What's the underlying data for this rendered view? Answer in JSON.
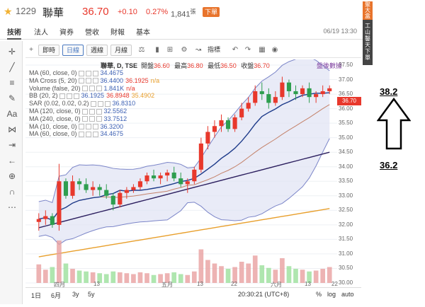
{
  "header": {
    "code": "1229",
    "name": "聯華",
    "price": "36.70",
    "change": "+0.10",
    "pct": "0.27%",
    "volume": "1,841",
    "volume_unit": "張",
    "order_button": "下單"
  },
  "tabs": [
    "技術",
    "法人",
    "資券",
    "營收",
    "財報",
    "基本"
  ],
  "datetime": "06/19 13:30",
  "toolbar": {
    "b1": "即時",
    "b2": "日線",
    "b3": "週線",
    "b4": "月線",
    "b5": "指標"
  },
  "ohlc": {
    "title": "聯華, D, TSE",
    "open_label": "開盤",
    "open": "36.60",
    "high_label": "最高",
    "high": "36.80",
    "low_label": "最低",
    "low": "36.50",
    "close_label": "收盤",
    "close": "36.70"
  },
  "purple_text": "盤後數據",
  "legend": [
    {
      "label": "MA (60, close, 0)",
      "v": "34.4675"
    },
    {
      "label": "MA Cross (5, 20)",
      "v": "36.4400",
      "v2": "36.1925",
      "v3": "n/a"
    },
    {
      "label": "Volume (false, 20)",
      "v": "1.841K",
      "v2": "n/a"
    },
    {
      "label": "BB (20, 2)",
      "v": "36.1925",
      "v2": "36.8948",
      "v3": "35.4902"
    },
    {
      "label": "SAR (0.02, 0.02, 0.2)",
      "v": "36.8310"
    },
    {
      "label": "MA (120, close, 0)",
      "v": "32.5562"
    },
    {
      "label": "MA (240, close, 0)",
      "v": "33.7512"
    },
    {
      "label": "MA (10, close, 0)",
      "v": "36.3200"
    },
    {
      "label": "MA (60, close, 0)",
      "v": "34.4675"
    }
  ],
  "price_labels": [
    "37.50",
    "37.00",
    "36.70",
    "36.50",
    "36.00",
    "35.50",
    "35.00",
    "34.50",
    "34.00",
    "33.50",
    "33.00",
    "32.50",
    "32.00",
    "31.50",
    "31.00",
    "30.50",
    "30.00"
  ],
  "x_labels": [
    "四月",
    "13",
    "五月",
    "13",
    "22",
    "六月",
    "13",
    "22"
  ],
  "bottom": {
    "r1": "1日",
    "r2": "6月",
    "r3": "3y",
    "r4": "5y",
    "time": "20:30:21 (UTC+8)",
    "pct": "%",
    "log": "log",
    "auto": "auto"
  },
  "side": {
    "s1": "聚大盒",
    "s2": "工山鑿天下單"
  },
  "annotation": {
    "top": "38.2",
    "bottom": "36.2"
  },
  "colors": {
    "up": "#e8382c",
    "down": "#2e9e4f",
    "accent": "#e8742c"
  },
  "chart_data": {
    "type": "candlestick",
    "title": "聯華, D, TSE",
    "ylim": [
      30.0,
      37.5
    ],
    "candles": [
      [
        32.1,
        32.4,
        31.8,
        32.2
      ],
      [
        32.2,
        32.5,
        32.0,
        32.3
      ],
      [
        32.3,
        32.4,
        31.9,
        32.0
      ],
      [
        32.0,
        34.1,
        31.8,
        33.5
      ],
      [
        33.5,
        33.6,
        32.9,
        33.0
      ],
      [
        33.0,
        33.7,
        32.9,
        33.5
      ],
      [
        33.5,
        33.6,
        33.2,
        33.4
      ],
      [
        33.4,
        33.6,
        33.1,
        33.2
      ],
      [
        33.2,
        33.5,
        33.0,
        33.3
      ],
      [
        33.3,
        33.4,
        33.0,
        33.2
      ],
      [
        33.2,
        33.4,
        32.9,
        33.0
      ],
      [
        33.0,
        33.1,
        32.5,
        32.7
      ],
      [
        32.7,
        33.2,
        32.6,
        33.1
      ],
      [
        33.1,
        33.3,
        32.9,
        33.2
      ],
      [
        33.2,
        33.4,
        33.1,
        33.3
      ],
      [
        33.3,
        33.6,
        33.2,
        33.5
      ],
      [
        33.5,
        33.8,
        33.4,
        33.7
      ],
      [
        33.7,
        33.9,
        33.5,
        33.6
      ],
      [
        33.6,
        33.8,
        33.4,
        33.7
      ],
      [
        33.7,
        33.9,
        33.5,
        33.8
      ],
      [
        33.8,
        34.0,
        33.5,
        33.6
      ],
      [
        33.6,
        33.8,
        33.3,
        33.4
      ],
      [
        33.4,
        33.6,
        33.1,
        33.5
      ],
      [
        33.5,
        34.0,
        33.4,
        33.9
      ],
      [
        33.9,
        35.0,
        33.8,
        34.8
      ],
      [
        34.8,
        35.4,
        34.6,
        35.2
      ],
      [
        35.2,
        35.6,
        35.0,
        35.4
      ],
      [
        35.4,
        35.8,
        35.2,
        35.6
      ],
      [
        35.6,
        35.7,
        35.2,
        35.3
      ],
      [
        35.3,
        35.8,
        35.2,
        35.7
      ],
      [
        35.7,
        36.2,
        35.6,
        36.0
      ],
      [
        36.0,
        36.4,
        35.9,
        36.2
      ],
      [
        36.2,
        36.8,
        36.1,
        36.6
      ],
      [
        36.6,
        36.9,
        36.3,
        36.5
      ],
      [
        36.5,
        36.7,
        36.0,
        36.2
      ],
      [
        36.2,
        36.6,
        36.1,
        36.4
      ],
      [
        36.4,
        37.1,
        36.3,
        36.9
      ],
      [
        36.9,
        37.0,
        36.4,
        36.6
      ],
      [
        36.6,
        36.8,
        36.3,
        36.5
      ],
      [
        36.5,
        36.8,
        36.4,
        36.7
      ],
      [
        36.7,
        36.9,
        36.2,
        36.4
      ],
      [
        36.4,
        36.6,
        36.2,
        36.5
      ],
      [
        36.5,
        36.8,
        36.4,
        36.6
      ],
      [
        36.6,
        36.8,
        36.5,
        36.7
      ]
    ],
    "volume": [
      2.1,
      1.5,
      1.8,
      4.8,
      2.2,
      1.6,
      1.4,
      1.3,
      1.2,
      1.1,
      1.0,
      1.3,
      1.2,
      1.1,
      1.0,
      1.2,
      1.1,
      0.9,
      1.0,
      1.1,
      1.2,
      1.0,
      0.9,
      1.3,
      3.8,
      2.6,
      2.2,
      1.9,
      1.6,
      1.8,
      2.4,
      2.2,
      3.1,
      2.0,
      1.7,
      1.5,
      2.8,
      1.9,
      1.6,
      1.5,
      1.3,
      1.4,
      1.6,
      1.8
    ]
  }
}
